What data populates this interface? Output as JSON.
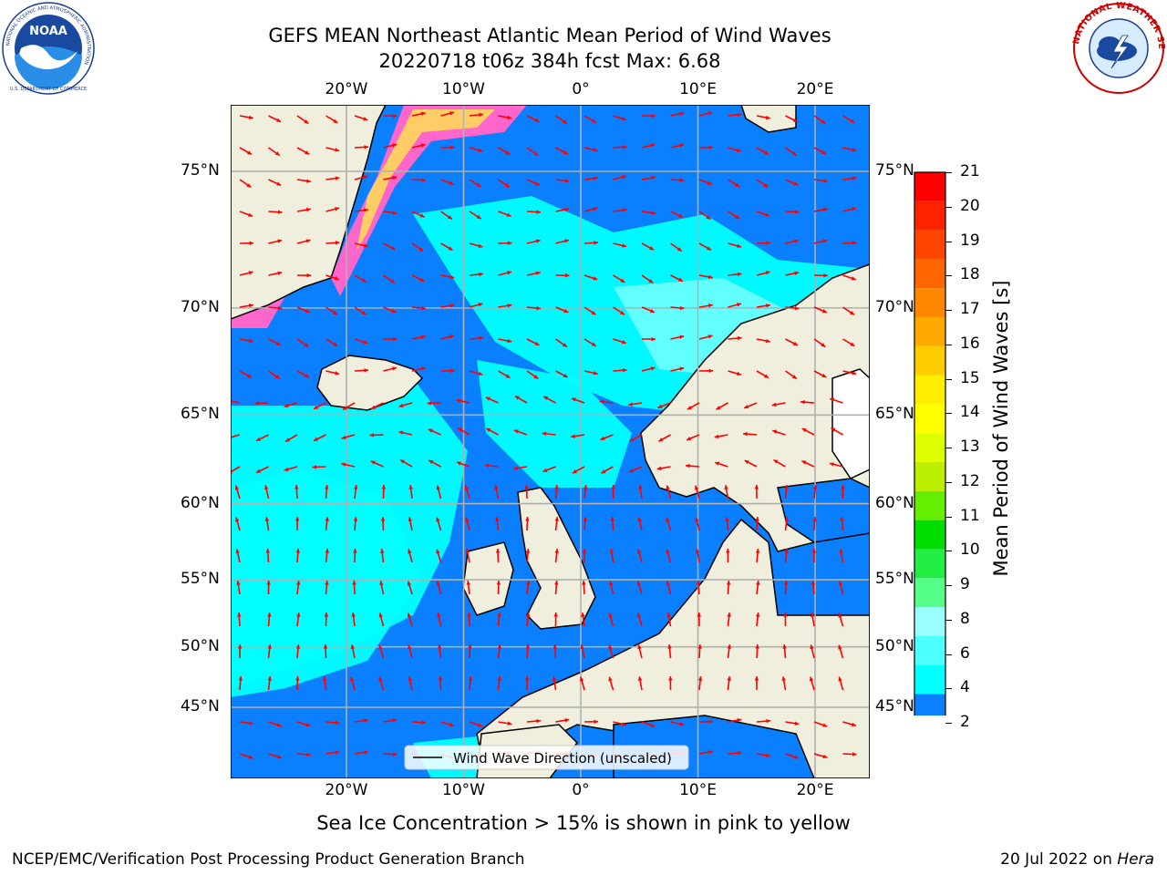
{
  "header": {
    "title_line1": "GEFS MEAN Northeast Atlantic Mean Period of Wind Waves",
    "title_line2": "20220718 t06z 384h fcst   Max: 6.68"
  },
  "logos": {
    "left": {
      "name": "NOAA",
      "ring_text": "NATIONAL OCEANIC AND ATMOSPHERIC ADMINISTRATION",
      "bottom_text": "U.S. DEPARTMENT OF COMMERCE"
    },
    "right": {
      "name": "NATIONAL WEATHER SERVICE"
    }
  },
  "map": {
    "lon_ticks_top": [
      "20°W",
      "10°W",
      "0°",
      "10°E",
      "20°E"
    ],
    "lon_ticks_bottom": [
      "20°W",
      "10°W",
      "0°",
      "10°E",
      "20°E"
    ],
    "lat_ticks_left": [
      "75°N",
      "70°N",
      "65°N",
      "60°N",
      "55°N",
      "50°N",
      "45°N"
    ],
    "lat_ticks_right": [
      "75°N",
      "70°N",
      "65°N",
      "60°N",
      "55°N",
      "50°N",
      "45°N"
    ],
    "legend_label": "Wind Wave Direction (unscaled)",
    "colors": {
      "land": "#f0eedc",
      "ocean_low": "#0a7fff",
      "ocean_mid": "#00ffff",
      "ocean_light": "#66ffff",
      "arrow": "#ff0000",
      "ice_pink": "#ff66cc",
      "ice_yellow": "#ffcc66"
    }
  },
  "colorbar": {
    "label": "Mean Period of Wind Waves [s]",
    "ticks": [
      "21",
      "20",
      "19",
      "18",
      "17",
      "16",
      "15",
      "14",
      "13",
      "12",
      "11",
      "10",
      "9",
      "8",
      "6",
      "4",
      "2"
    ],
    "colors": [
      "#0000ee",
      "#0a7fff",
      "#00ffff",
      "#4dffff",
      "#99ffff",
      "#55ff88",
      "#22ee44",
      "#00dd00",
      "#66ee00",
      "#bbee00",
      "#ddff00",
      "#ffff00",
      "#ffee00",
      "#ffcc00",
      "#ffaa00",
      "#ff8800",
      "#ff6600",
      "#ff4400",
      "#ff2200",
      "#ff0000"
    ]
  },
  "footer": {
    "note": "Sea Ice Concentration > 15% is shown in pink to yellow",
    "left": "NCEP/EMC/Verification Post Processing Product Generation Branch",
    "right_date": "20 Jul 2022 on ",
    "right_host": "Hera"
  }
}
